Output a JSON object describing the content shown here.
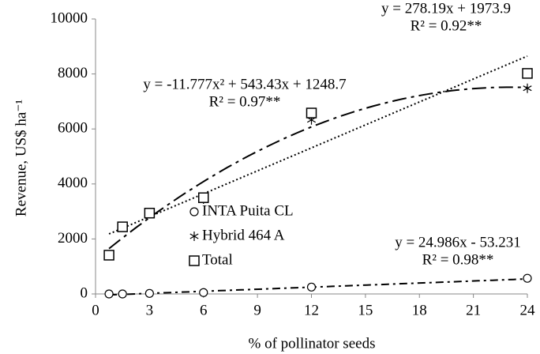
{
  "chart_data": {
    "type": "scatter",
    "x_label": "% of pollinator seeds",
    "y_label": "Revenue, US$ ha⁻¹",
    "xlim": [
      0,
      24
    ],
    "xticks": [
      0,
      3,
      6,
      9,
      12,
      15,
      18,
      21,
      24
    ],
    "ylim": [
      0,
      10000
    ],
    "yticks": [
      0,
      2000,
      4000,
      6000,
      8000,
      10000
    ],
    "series": [
      {
        "name": "INTA Puita CL",
        "marker": "circle",
        "color": "#000000",
        "x": [
          0.75,
          1.5,
          3,
          6,
          12,
          24
        ],
        "values": [
          0,
          0,
          20,
          50,
          250,
          570
        ]
      },
      {
        "name": "Hybrid 464 A",
        "marker": "asterisk",
        "color": "#000000",
        "x": [
          0.75,
          1.5,
          3,
          6,
          12,
          24
        ],
        "values": [
          1400,
          2440,
          2920,
          3450,
          6330,
          7480
        ]
      },
      {
        "name": "Total",
        "marker": "square",
        "color": "#000000",
        "x": [
          0.75,
          1.5,
          3,
          6,
          12,
          24
        ],
        "values": [
          1410,
          2440,
          2940,
          3500,
          6580,
          8020
        ]
      }
    ],
    "trendlines": [
      {
        "equation": "y = 278.19x + 1973.9",
        "r2": "R² = 0.92**",
        "coefficients": [
          1973.9,
          278.19
        ],
        "style": "dotted"
      },
      {
        "equation": "y = -11.777x² + 543.43x + 1248.7",
        "r2": "R² = 0.97**",
        "coefficients": [
          1248.7,
          543.43,
          -11.777
        ],
        "style": "longdashdot"
      },
      {
        "equation": "y = 24.986x - 53.231",
        "r2": "R² = 0.98**",
        "coefficients": [
          -53.231,
          24.986
        ],
        "style": "dashdot"
      }
    ]
  }
}
